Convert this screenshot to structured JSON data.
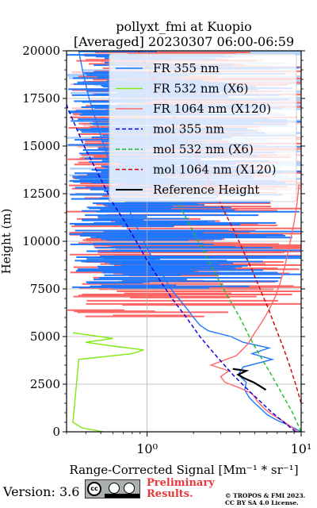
{
  "chart_data": {
    "type": "line",
    "title": "pollyxt_fmi at Kuopio",
    "subtitle": "[Averaged] 20230307 06:00-06:59",
    "xlabel": "Range-Corrected Signal [Mm⁻¹ * sr⁻¹]",
    "ylabel": "Height (m)",
    "xscale": "log",
    "xlim": [
      0.3,
      10
    ],
    "ylim": [
      0,
      20000
    ],
    "xticks": [
      {
        "value": 1,
        "label": "10⁰"
      },
      {
        "value": 10,
        "label": "10¹"
      }
    ],
    "yticks": [
      0,
      2500,
      5000,
      7500,
      10000,
      12500,
      15000,
      17500,
      20000
    ],
    "ytick_labels": [
      "0",
      "2500",
      "5000",
      "7500",
      "10000",
      "12500",
      "15000",
      "17500",
      "20000"
    ],
    "grid": true,
    "legend_position": "top-right",
    "series": [
      {
        "name": "FR 355 nm",
        "color": "#1f77ff",
        "style": "solid",
        "points": [
          [
            10,
            0
          ],
          [
            9,
            200
          ],
          [
            8,
            400
          ],
          [
            7,
            600
          ],
          [
            6,
            900
          ],
          [
            5.5,
            1200
          ],
          [
            5,
            1500
          ],
          [
            4.6,
            1800
          ],
          [
            4.3,
            2200
          ],
          [
            4.4,
            2600
          ],
          [
            3.9,
            3000
          ],
          [
            4.2,
            3400
          ],
          [
            6.5,
            3800
          ],
          [
            4.8,
            4100
          ],
          [
            6.2,
            4400
          ],
          [
            4.2,
            4700
          ],
          [
            3.5,
            5000
          ],
          [
            2.5,
            5300
          ],
          [
            2.2,
            5600
          ],
          [
            2.0,
            6000
          ],
          [
            1.8,
            6500
          ],
          [
            1.6,
            7000
          ],
          [
            1.4,
            7600
          ],
          [
            1.25,
            8300
          ],
          [
            1.1,
            9000
          ],
          [
            0.98,
            9800
          ],
          [
            0.85,
            10800
          ],
          [
            0.75,
            11800
          ],
          [
            0.65,
            13000
          ],
          [
            0.55,
            14500
          ],
          [
            0.48,
            16000
          ],
          [
            0.42,
            17500
          ],
          [
            0.38,
            19000
          ],
          [
            0.36,
            20000
          ]
        ]
      },
      {
        "name": "FR 532 nm (X6)",
        "color": "#7ee813",
        "style": "solid",
        "points": [
          [
            0.52,
            0
          ],
          [
            0.38,
            200
          ],
          [
            0.33,
            500
          ],
          [
            0.36,
            3800
          ],
          [
            0.8,
            4100
          ],
          [
            0.95,
            4300
          ],
          [
            0.6,
            4500
          ],
          [
            0.4,
            4700
          ],
          [
            0.6,
            4900
          ],
          [
            0.33,
            5200
          ]
        ]
      },
      {
        "name": "FR 1064 nm (X120)",
        "color": "#ff6666",
        "style": "solid",
        "points": [
          [
            9.5,
            0
          ],
          [
            8.5,
            300
          ],
          [
            7.5,
            600
          ],
          [
            6.5,
            900
          ],
          [
            5.8,
            1200
          ],
          [
            5.2,
            1600
          ],
          [
            4.8,
            2000
          ],
          [
            4.0,
            2300
          ],
          [
            3.2,
            2600
          ],
          [
            3.0,
            2900
          ],
          [
            3.4,
            3200
          ],
          [
            2.6,
            3500
          ],
          [
            3.8,
            4000
          ],
          [
            4.5,
            4600
          ],
          [
            5.0,
            5200
          ],
          [
            5.6,
            5800
          ],
          [
            6.2,
            6400
          ],
          [
            6.8,
            7100
          ],
          [
            7.3,
            7800
          ],
          [
            7.8,
            8600
          ],
          [
            8.2,
            9400
          ],
          [
            8.6,
            10200
          ],
          [
            9.0,
            11000
          ],
          [
            9.4,
            12000
          ],
          [
            9.7,
            13000
          ]
        ]
      },
      {
        "name": "mol 355 nm",
        "color": "#0000dd",
        "style": "dashed",
        "points": [
          [
            9.2,
            0
          ],
          [
            6.5,
            1000
          ],
          [
            4.8,
            2000
          ],
          [
            3.6,
            3000
          ],
          [
            2.8,
            4000
          ],
          [
            2.2,
            5000
          ],
          [
            1.8,
            6000
          ],
          [
            1.45,
            7000
          ],
          [
            1.2,
            8000
          ],
          [
            1.0,
            9000
          ],
          [
            0.85,
            10000
          ],
          [
            0.72,
            11000
          ],
          [
            0.6,
            12000
          ],
          [
            0.52,
            13000
          ],
          [
            0.45,
            14000
          ],
          [
            0.39,
            15000
          ],
          [
            0.345,
            16000
          ],
          [
            0.305,
            17000
          ],
          [
            0.3,
            17200
          ]
        ]
      },
      {
        "name": "mol 532 nm (X6)",
        "color": "#22bb22",
        "style": "dashed",
        "points": [
          [
            10,
            0
          ],
          [
            8.8,
            1000
          ],
          [
            7.5,
            2000
          ],
          [
            6.4,
            3000
          ],
          [
            5.4,
            4000
          ],
          [
            4.6,
            5000
          ],
          [
            4.0,
            6000
          ],
          [
            3.4,
            7000
          ],
          [
            2.9,
            8000
          ],
          [
            2.5,
            9000
          ],
          [
            2.15,
            10000
          ],
          [
            1.85,
            11000
          ],
          [
            1.6,
            12000
          ],
          [
            1.4,
            13000
          ],
          [
            1.22,
            14000
          ],
          [
            1.06,
            15000
          ],
          [
            0.93,
            16000
          ],
          [
            0.82,
            17000
          ],
          [
            0.72,
            18000
          ],
          [
            0.64,
            19000
          ],
          [
            0.57,
            20000
          ]
        ]
      },
      {
        "name": "mol 1064 nm (X120)",
        "color": "#cc0000",
        "style": "dashed",
        "points": [
          [
            10,
            1500
          ],
          [
            9.2,
            2500
          ],
          [
            8.4,
            3500
          ],
          [
            7.6,
            4500
          ],
          [
            6.8,
            5500
          ],
          [
            6.1,
            6500
          ],
          [
            5.4,
            7500
          ],
          [
            4.8,
            8500
          ],
          [
            4.2,
            9500
          ],
          [
            3.7,
            10500
          ],
          [
            3.2,
            11500
          ],
          [
            2.8,
            12500
          ],
          [
            2.4,
            13500
          ],
          [
            2.05,
            14500
          ],
          [
            1.75,
            15500
          ],
          [
            1.5,
            16500
          ],
          [
            1.28,
            17500
          ],
          [
            1.1,
            18500
          ],
          [
            0.95,
            19500
          ],
          [
            0.88,
            20000
          ]
        ]
      },
      {
        "name": "Reference Height",
        "color": "#000000",
        "style": "solid",
        "points": [
          [
            4.0,
            3250
          ],
          [
            3.6,
            3300
          ],
          [
            4.4,
            3200
          ],
          [
            3.9,
            3000
          ],
          [
            4.3,
            2800
          ],
          [
            4.9,
            2600
          ],
          [
            5.4,
            2400
          ],
          [
            5.9,
            2200
          ]
        ]
      }
    ],
    "noise_bands": {
      "blue_dense": {
        "color": "#1f77ff",
        "min_height": 7500,
        "max_height": 20000
      },
      "red_dense": {
        "color": "#ff6666",
        "min_height": 6000,
        "max_height": 20000
      },
      "light_blue": {
        "color": "#a8d0ff",
        "min_height": 12500,
        "max_height": 20000
      },
      "light_red": {
        "color": "#ffc9c9",
        "min_height": 12500,
        "max_height": 20000
      }
    }
  },
  "footer": {
    "version": "Version: 3.6",
    "preliminary_line1": "Preliminary",
    "preliminary_line2": "Results.",
    "copyright_line1": "© TROPOS & FMI 2023.",
    "copyright_line2": "CC BY SA 4.0 License.",
    "license_badge_text": "cc"
  }
}
